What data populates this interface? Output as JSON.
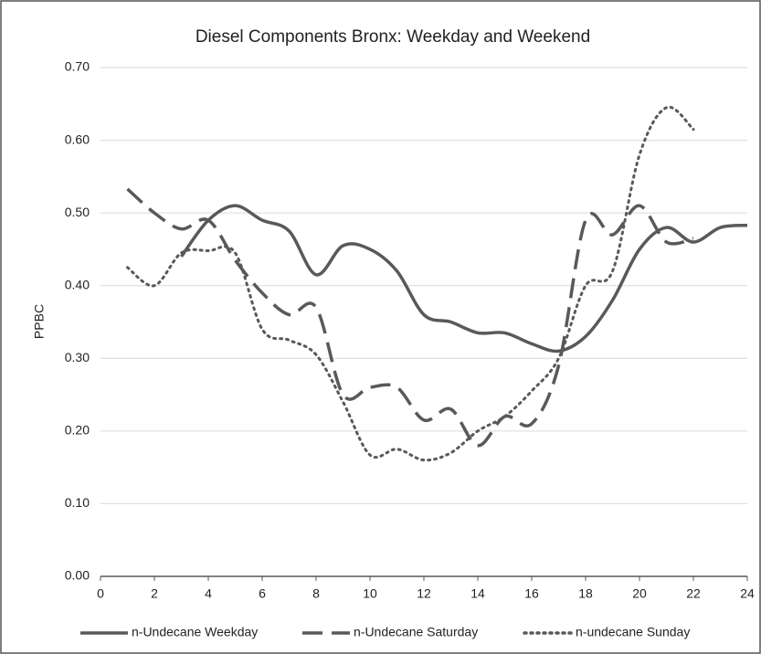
{
  "chart_data": {
    "type": "line",
    "title": "Diesel Components  Bronx: Weekday and Weekend",
    "y_label": "PPBC",
    "x": [
      1,
      2,
      3,
      4,
      5,
      6,
      7,
      8,
      9,
      10,
      11,
      12,
      13,
      14,
      15,
      16,
      17,
      18,
      19,
      20,
      21,
      22,
      23,
      24
    ],
    "series": [
      {
        "name": "n-Undecane Weekday",
        "color": "#595959",
        "dash": "solid",
        "values": [
          null,
          null,
          0.44,
          0.49,
          0.51,
          0.49,
          0.475,
          0.415,
          0.455,
          0.45,
          0.42,
          0.36,
          0.35,
          0.335,
          0.335,
          0.32,
          0.31,
          0.33,
          0.38,
          0.45,
          0.48,
          0.46,
          0.48,
          0.483
        ]
      },
      {
        "name": "n-Undecane Saturday",
        "color": "#595959",
        "dash": "dashed",
        "values": [
          0.533,
          0.5,
          0.478,
          0.49,
          0.435,
          0.39,
          0.36,
          0.37,
          0.25,
          0.26,
          0.26,
          0.215,
          0.23,
          0.18,
          0.22,
          0.21,
          0.29,
          0.49,
          0.47,
          0.51,
          0.46,
          0.465,
          null,
          null
        ]
      },
      {
        "name": "n-undecane Sunday",
        "color": "#595959",
        "dash": "dotted",
        "values": [
          0.425,
          0.4,
          0.445,
          0.448,
          0.445,
          0.34,
          0.325,
          0.305,
          0.24,
          0.167,
          0.175,
          0.16,
          0.17,
          0.2,
          0.22,
          0.255,
          0.3,
          0.4,
          0.42,
          0.58,
          0.645,
          0.615,
          null,
          null
        ]
      }
    ],
    "xlim": [
      0,
      24
    ],
    "xticks": [
      0,
      2,
      4,
      6,
      8,
      10,
      12,
      14,
      16,
      18,
      20,
      22,
      24
    ],
    "ylim": [
      0,
      0.7
    ],
    "yticks": [
      {
        "value": 0,
        "label": "0.00"
      },
      {
        "value": 0.1,
        "label": "0.10"
      },
      {
        "value": 0.2,
        "label": "0.20"
      },
      {
        "value": 0.3,
        "label": "0.30"
      },
      {
        "value": 0.4,
        "label": "0.40"
      },
      {
        "value": 0.5,
        "label": "0.50"
      },
      {
        "value": 0.6,
        "label": "0.60"
      },
      {
        "value": 0.7,
        "label": "0.70"
      }
    ],
    "grid": true,
    "legend": "bottom"
  }
}
